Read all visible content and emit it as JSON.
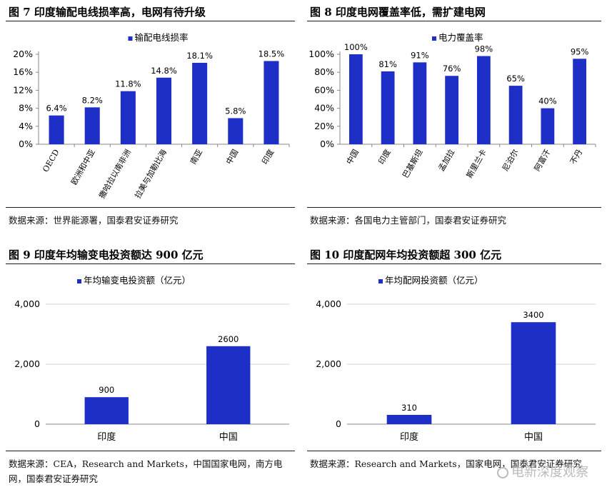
{
  "panels": [
    {
      "title": "图 7 印度输配电线损率高，电网有待升级",
      "source": "数据来源：世界能源署，国泰君安证券研究",
      "chart_data": {
        "type": "bar",
        "legend": "输配电线损率",
        "legend_position": "top-center",
        "categories": [
          "OECD",
          "欧洲和中亚",
          "撒哈拉以南非洲",
          "拉美与加勒比海",
          "南亚",
          "中国",
          "印度"
        ],
        "values": [
          6.4,
          8.2,
          11.8,
          14.8,
          18.1,
          5.8,
          18.5
        ],
        "value_labels": [
          "6.4%",
          "8.2%",
          "11.8%",
          "14.8%",
          "18.1%",
          "5.8%",
          "18.5%"
        ],
        "y_ticks": [
          "0%",
          "4%",
          "8%",
          "12%",
          "16%",
          "20%"
        ],
        "ylim": [
          0,
          20
        ],
        "grid": false,
        "color": "#1E2FC8"
      }
    },
    {
      "title": "图 8 印度电网覆盖率低，需扩建电网",
      "source": "数据来源：各国电力主管部门，国泰君安证券研究",
      "chart_data": {
        "type": "bar",
        "legend": "电力覆盖率",
        "legend_position": "top-center",
        "categories": [
          "中国",
          "印度",
          "巴基斯坦",
          "孟加拉",
          "斯里兰卡",
          "尼泊尔",
          "阿富汗",
          "不丹"
        ],
        "values": [
          100,
          81,
          91,
          76,
          98,
          65,
          40,
          95
        ],
        "value_labels": [
          "100%",
          "81%",
          "91%",
          "76%",
          "98%",
          "65%",
          "40%",
          "95%"
        ],
        "y_ticks": [
          "0%",
          "20%",
          "40%",
          "60%",
          "80%",
          "100%"
        ],
        "ylim": [
          0,
          100
        ],
        "grid": false,
        "color": "#1E2FC8"
      }
    },
    {
      "title": "图 9 印度年均输变电投资额达 900 亿元",
      "source": "数据来源：CEA，Research and Markets，中国国家电网，南方电网，国泰君安证券研究",
      "chart_data": {
        "type": "bar",
        "legend": "年均输变电投资额（亿元）",
        "legend_position": "top-left",
        "categories": [
          "印度",
          "中国"
        ],
        "values": [
          900,
          2600
        ],
        "value_labels": [
          "900",
          "2600"
        ],
        "y_ticks": [
          "0",
          "2,000",
          "4,000"
        ],
        "ylim": [
          0,
          4000
        ],
        "grid": true,
        "color": "#1E2FC8"
      }
    },
    {
      "title": "图 10 印度配网年均投资额超 300 亿元",
      "source": "数据来源：Research and Markets，国家电网，国泰君安证券研究",
      "watermark": "电新深度观察",
      "chart_data": {
        "type": "bar",
        "legend": "年均配网投资额（亿元）",
        "legend_position": "top-left",
        "categories": [
          "印度",
          "中国"
        ],
        "values": [
          310,
          3400
        ],
        "value_labels": [
          "310",
          "3400"
        ],
        "y_ticks": [
          "0",
          "2,000",
          "4,000"
        ],
        "ylim": [
          0,
          4000
        ],
        "grid": true,
        "color": "#1E2FC8"
      }
    }
  ]
}
